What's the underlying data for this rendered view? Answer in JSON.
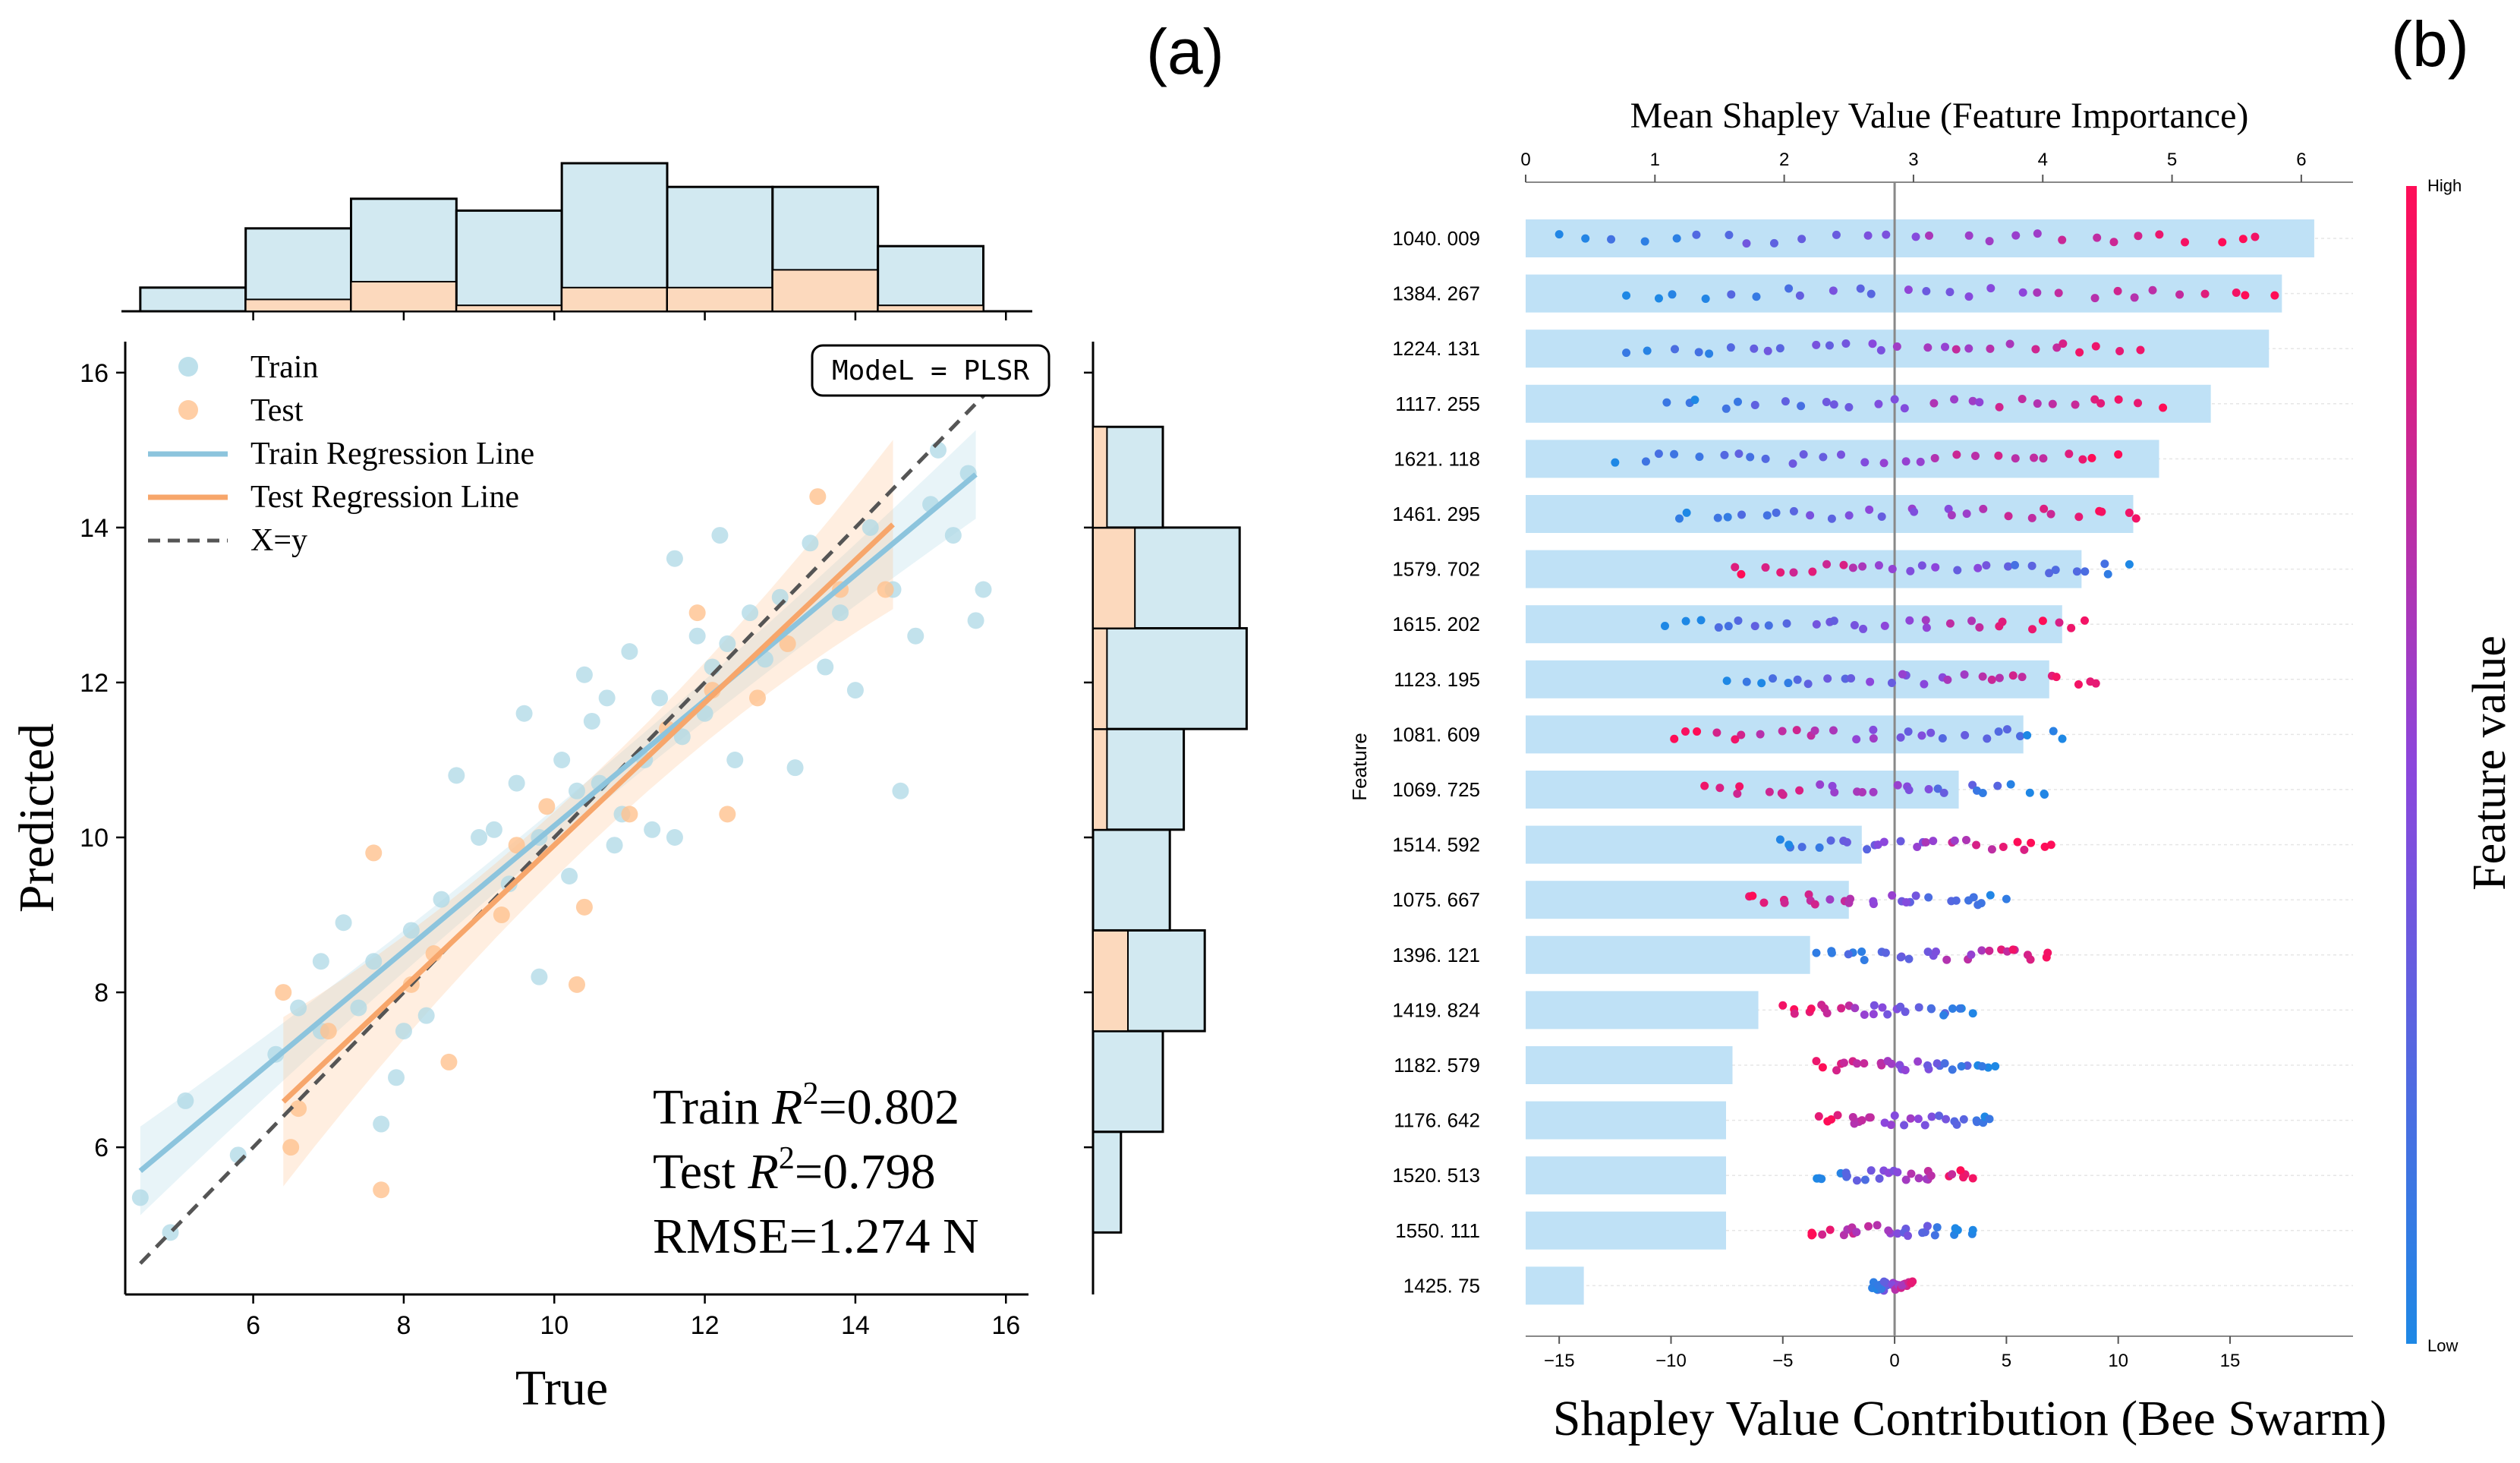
{
  "panel_a_label": "(a)",
  "panel_b_label": "(b)",
  "colors": {
    "train": "#add8e6",
    "test": "#ffc28f",
    "train_line": "#8cc4dd",
    "test_line": "#f7a66b",
    "hist_train": "#d2e9f1",
    "hist_test": "#fcd9bd",
    "bar": "#bfe1f6",
    "low": "#1e88e5",
    "high": "#ff0d57"
  },
  "chart_data": [
    {
      "type": "scatter",
      "title": "",
      "xlabel": "True",
      "ylabel": "Predicted",
      "xlim": [
        4.3,
        16.3
      ],
      "ylim": [
        4.1,
        16.4
      ],
      "xticks": [
        "6",
        "8",
        "10",
        "12",
        "14",
        "16"
      ],
      "yticks": [
        "6",
        "8",
        "10",
        "12",
        "14",
        "16"
      ],
      "model_label": "ModeL = PLSR",
      "legend": {
        "position": "top-left",
        "train": "Train",
        "test": "Test",
        "train_line": "Train Regression Line",
        "test_line": "Test Regression Line",
        "identity": "X=y"
      },
      "annotations": {
        "train_r2_prefix": "Train ",
        "test_r2_prefix": "Test ",
        "r2_symbol": "R",
        "sup": "2",
        "train_r2_value": "=0.802",
        "test_r2_value": "=0.798",
        "rmse": "RMSE=1.274 N"
      },
      "train_points": [
        [
          4.5,
          5.35
        ],
        [
          4.9,
          4.9
        ],
        [
          5.1,
          6.6
        ],
        [
          5.8,
          5.9
        ],
        [
          6.3,
          7.2
        ],
        [
          6.6,
          7.8
        ],
        [
          6.9,
          8.4
        ],
        [
          7.2,
          8.9
        ],
        [
          7.4,
          7.8
        ],
        [
          7.6,
          8.4
        ],
        [
          7.7,
          6.3
        ],
        [
          7.9,
          6.9
        ],
        [
          8.0,
          7.5
        ],
        [
          8.3,
          7.7
        ],
        [
          8.5,
          9.2
        ],
        [
          8.7,
          10.8
        ],
        [
          9.0,
          10.0
        ],
        [
          9.2,
          10.1
        ],
        [
          9.4,
          9.4
        ],
        [
          9.5,
          10.7
        ],
        [
          9.6,
          11.6
        ],
        [
          9.8,
          8.2
        ],
        [
          9.8,
          10.0
        ],
        [
          10.1,
          11.0
        ],
        [
          10.3,
          10.6
        ],
        [
          10.4,
          12.1
        ],
        [
          10.5,
          11.5
        ],
        [
          10.6,
          10.7
        ],
        [
          10.7,
          11.8
        ],
        [
          10.8,
          9.9
        ],
        [
          10.9,
          10.3
        ],
        [
          11.0,
          12.4
        ],
        [
          11.2,
          11.0
        ],
        [
          11.4,
          11.8
        ],
        [
          11.6,
          13.6
        ],
        [
          11.6,
          10.0
        ],
        [
          11.7,
          11.3
        ],
        [
          11.9,
          12.6
        ],
        [
          12.0,
          11.6
        ],
        [
          12.1,
          12.2
        ],
        [
          12.2,
          13.9
        ],
        [
          12.4,
          11.0
        ],
        [
          12.6,
          12.9
        ],
        [
          12.8,
          12.3
        ],
        [
          13.0,
          13.1
        ],
        [
          13.2,
          10.9
        ],
        [
          13.4,
          13.8
        ],
        [
          13.6,
          12.2
        ],
        [
          13.8,
          12.9
        ],
        [
          14.0,
          11.9
        ],
        [
          14.2,
          14.0
        ],
        [
          14.5,
          13.2
        ],
        [
          14.8,
          12.6
        ],
        [
          15.0,
          14.3
        ],
        [
          14.6,
          10.6
        ],
        [
          15.1,
          15.0
        ],
        [
          15.3,
          13.9
        ],
        [
          15.5,
          14.7
        ],
        [
          15.6,
          12.8
        ],
        [
          15.7,
          13.2
        ],
        [
          12.3,
          12.5
        ],
        [
          10.2,
          9.5
        ],
        [
          8.1,
          8.8
        ],
        [
          6.9,
          7.5
        ],
        [
          11.3,
          10.1
        ]
      ],
      "test_points": [
        [
          6.4,
          8.0
        ],
        [
          6.6,
          6.5
        ],
        [
          7.0,
          7.5
        ],
        [
          7.6,
          9.8
        ],
        [
          7.7,
          5.45
        ],
        [
          8.1,
          8.1
        ],
        [
          8.4,
          8.5
        ],
        [
          8.6,
          7.1
        ],
        [
          9.3,
          9.0
        ],
        [
          9.5,
          9.9
        ],
        [
          10.3,
          8.1
        ],
        [
          10.4,
          9.1
        ],
        [
          11.0,
          10.3
        ],
        [
          11.5,
          11.4
        ],
        [
          11.9,
          12.9
        ],
        [
          12.3,
          10.3
        ],
        [
          12.7,
          11.8
        ],
        [
          13.1,
          12.5
        ],
        [
          13.5,
          14.4
        ],
        [
          13.8,
          13.2
        ],
        [
          14.4,
          13.2
        ],
        [
          6.5,
          6.0
        ],
        [
          9.9,
          10.4
        ],
        [
          12.1,
          11.9
        ]
      ],
      "train_line": {
        "x0": 4.5,
        "x1": 15.6,
        "slope": 0.81,
        "intercept": 2.05
      },
      "test_line": {
        "x0": 6.4,
        "x1": 14.5,
        "slope": 0.92,
        "intercept": 0.7
      },
      "top_histogram": {
        "bins": [
          4.5,
          5.9,
          7.3,
          8.7,
          10.1,
          11.5,
          12.9,
          14.3,
          15.7
        ],
        "train": [
          4,
          14,
          19,
          17,
          25,
          21,
          21,
          11
        ],
        "test": [
          0,
          2,
          5,
          1,
          4,
          4,
          7,
          1
        ]
      },
      "right_histogram": {
        "bins": [
          4.9,
          6.2,
          7.5,
          8.8,
          10.1,
          11.4,
          12.7,
          14.0,
          15.3
        ],
        "train": [
          4,
          10,
          16,
          11,
          13,
          22,
          21,
          10
        ],
        "test": [
          0,
          0,
          5,
          0,
          2,
          2,
          6,
          2
        ]
      }
    },
    {
      "type": "bar",
      "title": "Mean Shapley Value (Feature Importance)",
      "xlabel": "Shapley Value Contribution (Bee Swarm)",
      "ylabel": "Feature",
      "colorbar_label": "Feature value",
      "colorbar_high": "High",
      "colorbar_low": "Low",
      "top_axis": {
        "range": [
          0,
          6.4
        ],
        "ticks": [
          "0",
          "1",
          "2",
          "3",
          "4",
          "5",
          "6"
        ]
      },
      "bottom_axis": {
        "range": [
          -16.5,
          20.5
        ],
        "ticks": [
          "−15",
          "−10",
          "−5",
          "0",
          "5",
          "10",
          "15"
        ]
      },
      "categories": [
        "1040. 009",
        "1384. 267",
        "1224. 131",
        "1117. 255",
        "1621. 118",
        "1461. 295",
        "1579. 702",
        "1615. 202",
        "1123. 195",
        "1081. 609",
        "1069. 725",
        "1514. 592",
        "1075. 667",
        "1396. 121",
        "1419. 824",
        "1182. 579",
        "1176. 642",
        "1520. 513",
        "1550. 111",
        "1425. 75"
      ],
      "values": [
        6.1,
        5.85,
        5.75,
        5.3,
        4.9,
        4.7,
        4.3,
        4.15,
        4.05,
        3.85,
        3.35,
        2.6,
        2.5,
        2.2,
        1.8,
        1.6,
        1.55,
        1.55,
        1.55,
        0.45
      ],
      "swarm": [
        {
          "min": -15.0,
          "max": 16.5,
          "dir": 1
        },
        {
          "min": -12.0,
          "max": 17.0,
          "dir": 1
        },
        {
          "min": -12.0,
          "max": 11.0,
          "dir": 1
        },
        {
          "min": -10.5,
          "max": 12.0,
          "dir": 1
        },
        {
          "min": -12.5,
          "max": 10.0,
          "dir": 1
        },
        {
          "min": -10.0,
          "max": 11.0,
          "dir": 1
        },
        {
          "min": -7.5,
          "max": 10.5,
          "dir": -1
        },
        {
          "min": -10.5,
          "max": 8.5,
          "dir": 1
        },
        {
          "min": -7.5,
          "max": 9.0,
          "dir": 1
        },
        {
          "min": -10.0,
          "max": 7.5,
          "dir": -1
        },
        {
          "min": -8.5,
          "max": 7.0,
          "dir": -1
        },
        {
          "min": -5.5,
          "max": 7.0,
          "dir": 1
        },
        {
          "min": -6.5,
          "max": 5.0,
          "dir": -1
        },
        {
          "min": -3.5,
          "max": 7.0,
          "dir": 1
        },
        {
          "min": -5.0,
          "max": 3.5,
          "dir": -1
        },
        {
          "min": -3.5,
          "max": 4.5,
          "dir": -1
        },
        {
          "min": -3.5,
          "max": 4.5,
          "dir": -1
        },
        {
          "min": -3.5,
          "max": 3.5,
          "dir": 1
        },
        {
          "min": -4.0,
          "max": 3.5,
          "dir": -1
        },
        {
          "min": -1.0,
          "max": 0.8,
          "dir": 1
        }
      ]
    }
  ]
}
